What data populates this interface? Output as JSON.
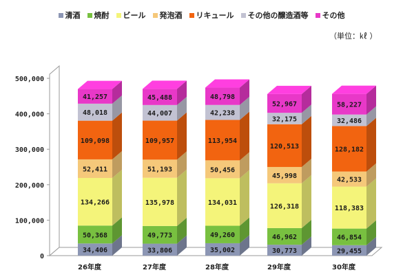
{
  "unit_label": "（単位：㎘ ）",
  "chart_data": {
    "type": "bar",
    "stacked": true,
    "style": "3d",
    "categories": [
      "26年度",
      "27年度",
      "28年度",
      "29年度",
      "30年度"
    ],
    "ylim": [
      0,
      500000
    ],
    "yticks": [
      "0",
      "100,000",
      "200,000",
      "300,000",
      "400,000",
      "500,000"
    ],
    "grid": false,
    "legend_position": "top",
    "series": [
      {
        "name": "清酒",
        "color": "#8c96b4",
        "values": [
          34406,
          33806,
          35002,
          30773,
          29455
        ],
        "labels": [
          "34,406",
          "33,806",
          "35,002",
          "30,773",
          "29,455"
        ]
      },
      {
        "name": "焼酎",
        "color": "#78c040",
        "values": [
          50368,
          49773,
          49260,
          46962,
          46854
        ],
        "labels": [
          "50,368",
          "49,773",
          "49,260",
          "46,962",
          "46,854"
        ]
      },
      {
        "name": "ビール",
        "color": "#f4f47a",
        "values": [
          134266,
          135978,
          134031,
          126318,
          118383
        ],
        "labels": [
          "134,266",
          "135,978",
          "134,031",
          "126,318",
          "118,383"
        ]
      },
      {
        "name": "発泡酒",
        "color": "#f5c87a",
        "values": [
          52411,
          51193,
          50456,
          45998,
          42533
        ],
        "labels": [
          "52,411",
          "51,193",
          "50,456",
          "45,998",
          "42,533"
        ]
      },
      {
        "name": "リキュール",
        "color": "#f26410",
        "values": [
          109098,
          109957,
          113954,
          120513,
          128182
        ],
        "labels": [
          "109,098",
          "109,957",
          "113,954",
          "120,513",
          "128,182"
        ]
      },
      {
        "name": "その他の醸造酒等",
        "color": "#c2c2d2",
        "values": [
          48018,
          44007,
          42238,
          32175,
          32486
        ],
        "labels": [
          "48,018",
          "44,007",
          "42,238",
          "32,175",
          "32,486"
        ]
      },
      {
        "name": "その他",
        "color": "#e838c8",
        "values": [
          41257,
          45488,
          48798,
          52967,
          58227
        ],
        "labels": [
          "41,257",
          "45,488",
          "48,798",
          "52,967",
          "58,227"
        ]
      }
    ]
  }
}
